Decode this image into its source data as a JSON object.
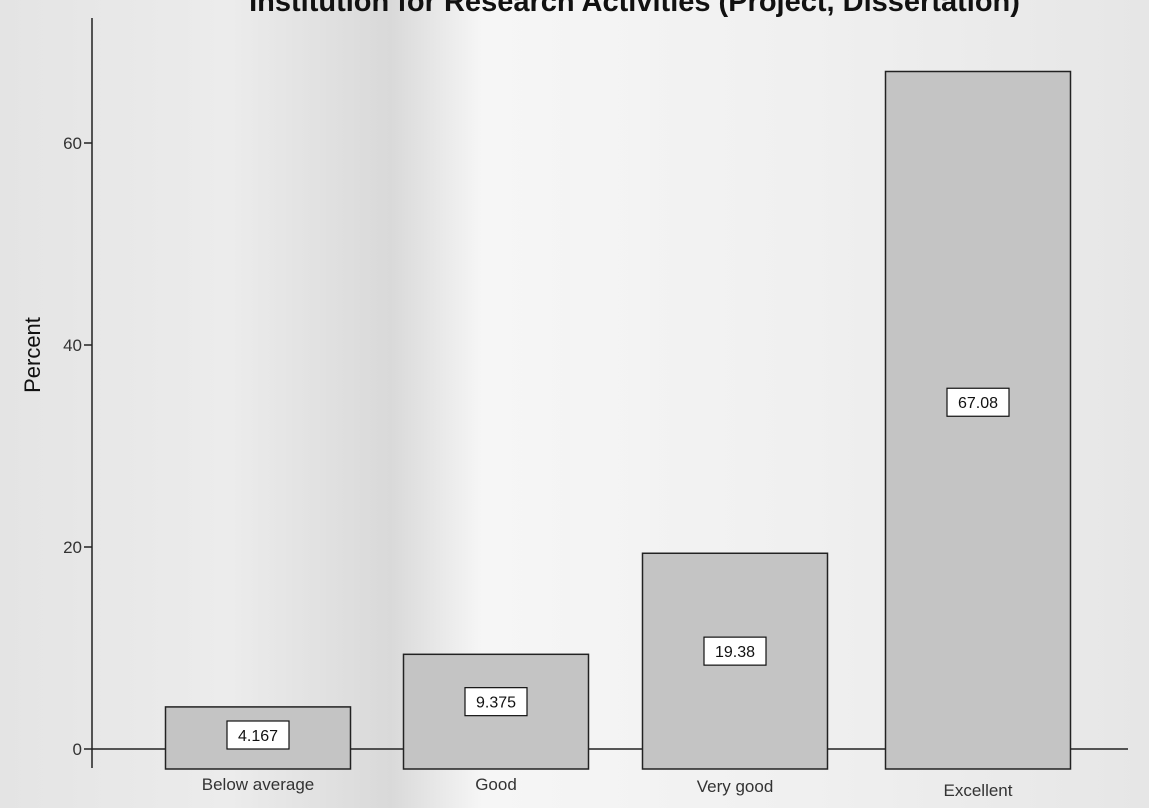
{
  "chart_data": {
    "type": "bar",
    "title": "Institution for Research Activities (Project, Dissertation)",
    "xlabel": "",
    "ylabel": "Percent",
    "categories": [
      "Below average",
      "Good",
      "Very good",
      "Excellent"
    ],
    "values": [
      4.167,
      9.375,
      19.38,
      67.08
    ],
    "data_labels": [
      "4.167",
      "9.375",
      "19.38",
      "67.08"
    ],
    "ylim": [
      0,
      70
    ],
    "yticks": [
      0,
      20,
      40,
      60
    ],
    "ytick_labels": [
      "0",
      "20",
      "40",
      "60"
    ],
    "grid": false,
    "legend": "none",
    "colors": {
      "bar_fill": "#c4c4c4",
      "bar_stroke": "#222222"
    }
  }
}
